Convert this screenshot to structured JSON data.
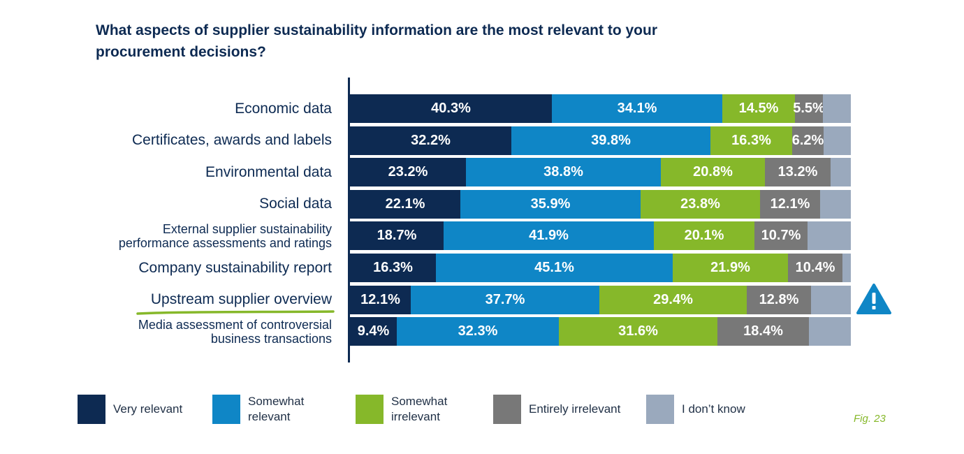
{
  "title_lines": [
    "What aspects of supplier sustainability information are the most relevant to your",
    "procurement decisions?"
  ],
  "colors": {
    "very_relevant": "#0d2a52",
    "somewhat_relevant": "#0f86c6",
    "somewhat_irrelevant": "#86b82a",
    "entirely_irrelevant": "#787878",
    "dont_know": "#9aa9bd",
    "title": "#0d2a52",
    "highlight_underline": "#86b82a",
    "warning": "#0f86c6"
  },
  "chart_data": {
    "type": "bar",
    "orientation": "horizontal",
    "stacked": true,
    "percent_stacked": true,
    "xlim": [
      0,
      100
    ],
    "grid": false,
    "legend_position": "bottom",
    "categories": [
      {
        "lines": [
          "Economic data"
        ]
      },
      {
        "lines": [
          "Certificates, awards and labels"
        ]
      },
      {
        "lines": [
          "Environmental data"
        ]
      },
      {
        "lines": [
          "Social data"
        ]
      },
      {
        "lines": [
          "External supplier sustainability",
          "performance assessments and ratings"
        ]
      },
      {
        "lines": [
          "Company sustainability report"
        ]
      },
      {
        "lines": [
          "Upstream supplier overview"
        ],
        "highlighted": true,
        "warning_icon": "warning-triangle-icon"
      },
      {
        "lines": [
          "Media assessment of controversial",
          "business transactions"
        ]
      }
    ],
    "series": [
      {
        "name": "Very relevant",
        "legend_lines": [
          "Very relevant"
        ],
        "color_key": "very_relevant",
        "values": [
          40.3,
          32.2,
          23.2,
          22.1,
          18.7,
          16.3,
          12.1,
          9.4
        ],
        "labels": [
          "40.3%",
          "32.2%",
          "23.2%",
          "22.1%",
          "18.7%",
          "16.3%",
          "12.1%",
          "9.4%"
        ]
      },
      {
        "name": "Somewhat relevant",
        "legend_lines": [
          "Somewhat",
          "relevant"
        ],
        "color_key": "somewhat_relevant",
        "values": [
          34.1,
          39.8,
          38.8,
          35.9,
          41.9,
          45.1,
          37.7,
          32.3
        ],
        "labels": [
          "34.1%",
          "39.8%",
          "38.8%",
          "35.9%",
          "41.9%",
          "45.1%",
          "37.7%",
          "32.3%"
        ]
      },
      {
        "name": "Somewhat irrelevant",
        "legend_lines": [
          "Somewhat",
          "irrelevant"
        ],
        "color_key": "somewhat_irrelevant",
        "values": [
          14.5,
          16.3,
          20.8,
          23.8,
          20.1,
          21.9,
          29.4,
          31.6
        ],
        "labels": [
          "14.5%",
          "16.3%",
          "20.8%",
          "23.8%",
          "20.1%",
          "21.9%",
          "29.4%",
          "31.6%"
        ]
      },
      {
        "name": "Entirely irrelevant",
        "legend_lines": [
          "Entirely irrelevant"
        ],
        "color_key": "entirely_irrelevant",
        "values": [
          5.5,
          6.2,
          13.2,
          12.1,
          10.7,
          10.4,
          12.8,
          18.4
        ],
        "labels": [
          "5.5%",
          "6.2%",
          "13.2%",
          "12.1%",
          "10.7%",
          "10.4%",
          "12.8%",
          "18.4%"
        ]
      },
      {
        "name": "I don't know",
        "legend_lines": [
          "I don’t know"
        ],
        "color_key": "dont_know",
        "values": [
          5.6,
          5.5,
          4.0,
          6.1,
          8.6,
          1.6,
          8.0,
          8.3
        ],
        "labels": [
          "",
          "",
          "",
          "",
          "",
          "",
          "",
          ""
        ]
      }
    ]
  },
  "figure_label": "Fig. 23"
}
